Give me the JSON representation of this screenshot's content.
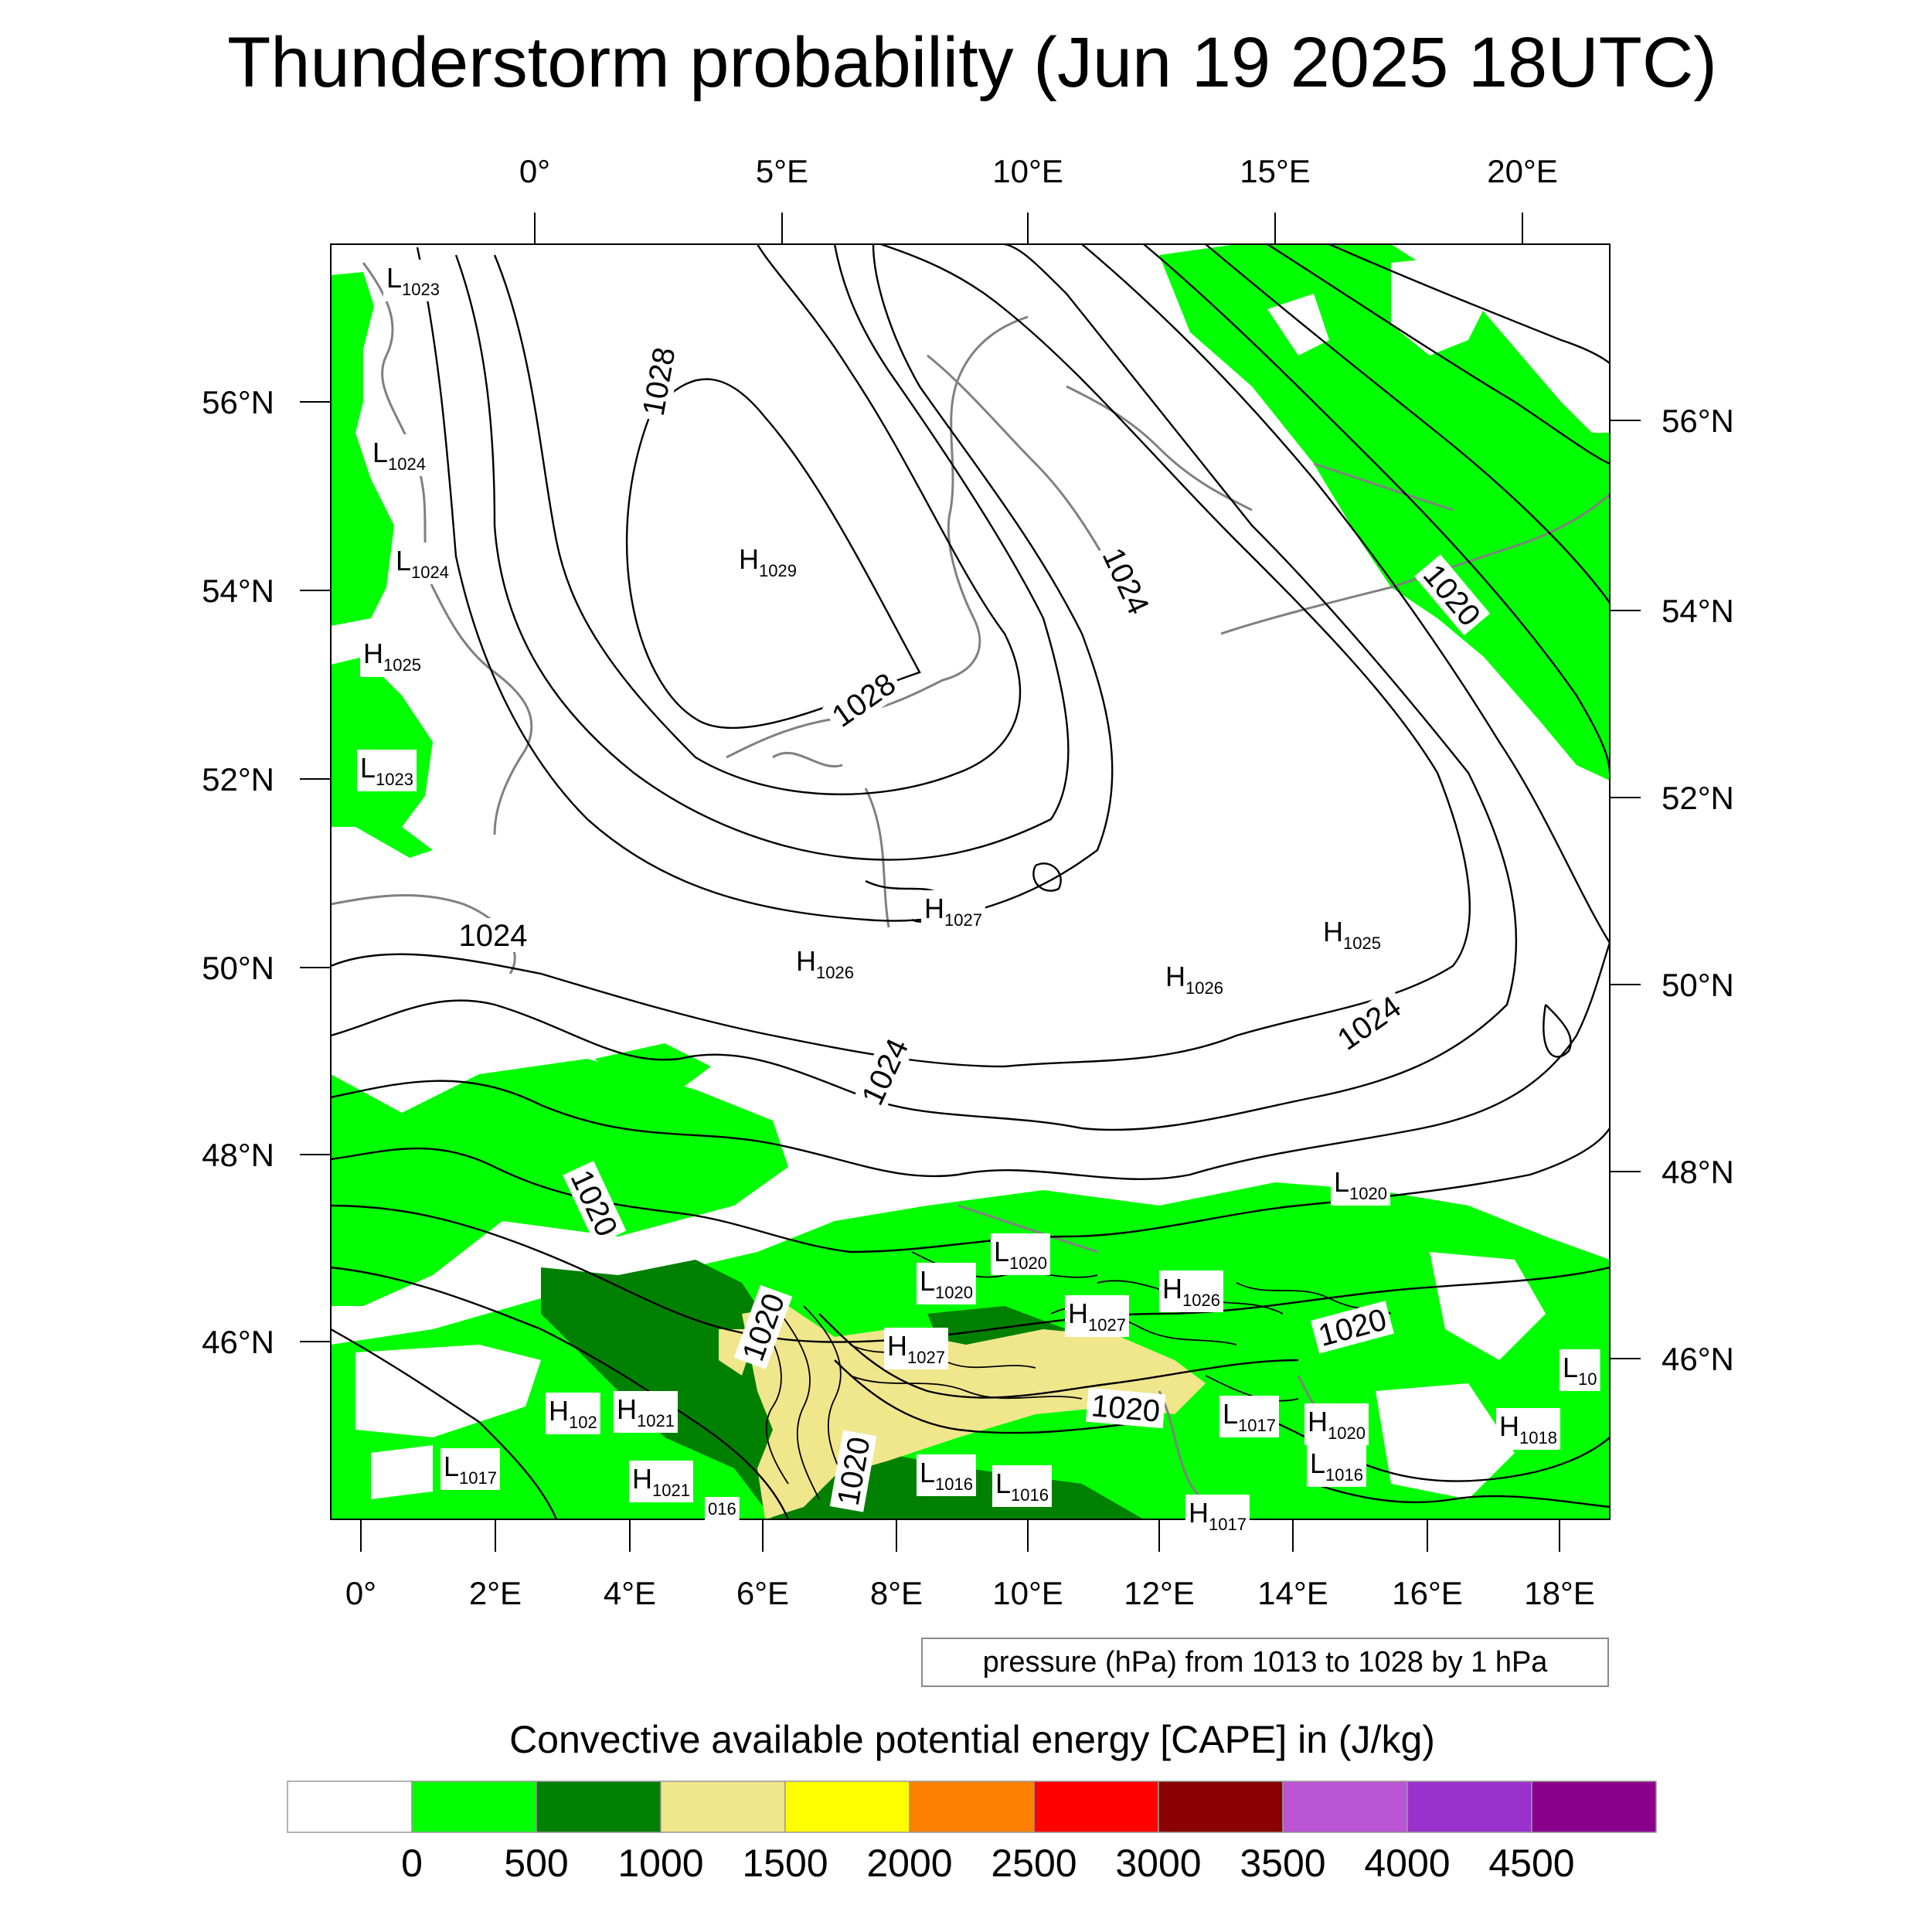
{
  "title": "Thunderstorm probability (Jun 19 2025 18UTC)",
  "top_lon_labels": [
    "0°",
    "5°E",
    "10°E",
    "15°E",
    "20°E"
  ],
  "bottom_lon_labels": [
    "0°",
    "2°E",
    "4°E",
    "6°E",
    "8°E",
    "10°E",
    "12°E",
    "14°E",
    "16°E",
    "18°E"
  ],
  "left_lat_labels": [
    "56°N",
    "54°N",
    "52°N",
    "50°N",
    "48°N",
    "46°N"
  ],
  "right_lat_labels": [
    "56°N",
    "54°N",
    "52°N",
    "50°N",
    "48°N",
    "46°N"
  ],
  "contour_note": "pressure (hPa) from 1013 to 1028 by 1 hPa",
  "pressure_centers": [
    {
      "type": "L",
      "value": "1023"
    },
    {
      "type": "L",
      "value": "1024"
    },
    {
      "type": "L",
      "value": "1024"
    },
    {
      "type": "H",
      "value": "1025"
    },
    {
      "type": "L",
      "value": "1023"
    },
    {
      "type": "H",
      "value": "1029"
    },
    {
      "type": "H",
      "value": "1027"
    },
    {
      "type": "H",
      "value": "1026"
    },
    {
      "type": "H",
      "value": "1026"
    },
    {
      "type": "H",
      "value": "1025"
    },
    {
      "type": "L",
      "value": "1020"
    },
    {
      "type": "L",
      "value": "1020"
    },
    {
      "type": "L",
      "value": "1020"
    },
    {
      "type": "H",
      "value": "1026"
    },
    {
      "type": "H",
      "value": "1027"
    },
    {
      "type": "H",
      "value": "1027"
    },
    {
      "type": "H",
      "value": "102"
    },
    {
      "type": "H",
      "value": "1021"
    },
    {
      "type": "L",
      "value": "1017"
    },
    {
      "type": "H",
      "value": "1021"
    },
    {
      "type": "",
      "value": "016"
    },
    {
      "type": "L",
      "value": "1016"
    },
    {
      "type": "L",
      "value": "1016"
    },
    {
      "type": "L",
      "value": "1017"
    },
    {
      "type": "H",
      "value": "1020"
    },
    {
      "type": "L",
      "value": "1016"
    },
    {
      "type": "H",
      "value": "1018"
    },
    {
      "type": "L",
      "value": "10"
    },
    {
      "type": "H",
      "value": "1017"
    }
  ],
  "isobar_labels": [
    "1028",
    "1028",
    "1024",
    "1020",
    "1024",
    "1024",
    "1024",
    "1020",
    "1020",
    "1020",
    "1020",
    "1020"
  ],
  "colorbar": {
    "title": "Convective available potential energy [CAPE] in (J/kg)",
    "colors": [
      "#ffffff",
      "#00ff00",
      "#008000",
      "#f0e68c",
      "#ffff00",
      "#ff8000",
      "#ff0000",
      "#8b0000",
      "#ba55d3",
      "#9932cc",
      "#8b008b"
    ],
    "labels": [
      "0",
      "500",
      "1000",
      "1500",
      "2000",
      "2500",
      "3000",
      "3500",
      "4000",
      "4500"
    ]
  }
}
